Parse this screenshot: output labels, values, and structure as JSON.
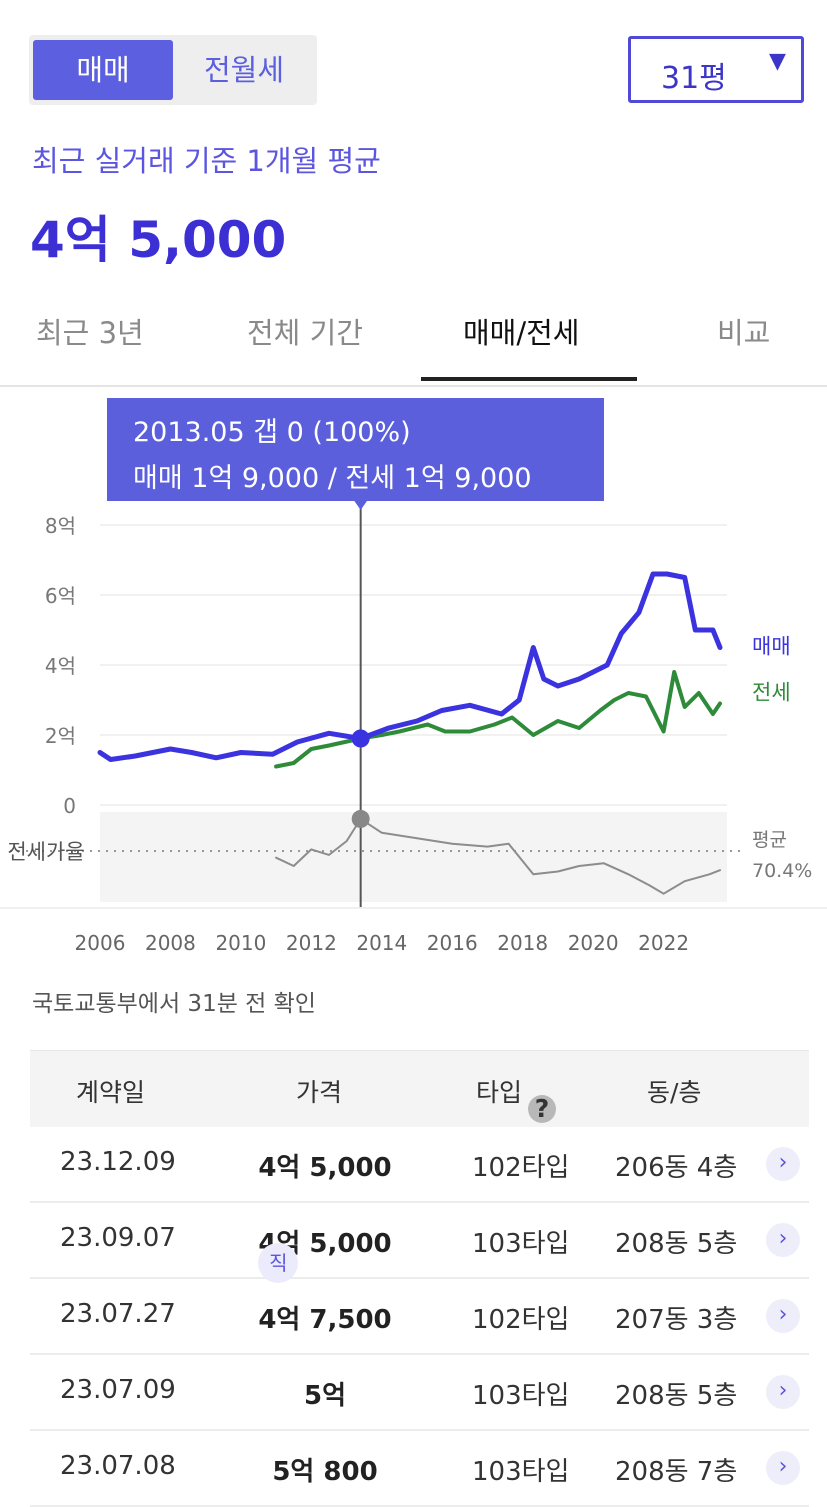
{
  "toggle": {
    "sale": "매매",
    "lease": "전월세"
  },
  "size_select": {
    "value": "31평",
    "caret": "▼"
  },
  "subtitle": "최근 실거래 기준 1개월 평균",
  "avg_price": "4억 5,000",
  "tabs": [
    "최근 3년",
    "전체 기간",
    "매매/전세",
    "비교"
  ],
  "active_tab": "매매/전세",
  "tooltip": {
    "line1": "2013.05  갭 0 (100%)",
    "line2": "매매 1억 9,000 / 전세 1억 9,000"
  },
  "colors": {
    "accent": "#5b5fe0",
    "sale_line": "#3a33df",
    "lease_line": "#2e8b3a",
    "ratio_line": "#8c8c8c"
  },
  "chart_data": {
    "type": "line",
    "y_tick_labels": [
      "8억",
      "6억",
      "4억",
      "2억",
      "0"
    ],
    "y_ticks": [
      8,
      6,
      4,
      2,
      0
    ],
    "ylim": [
      0,
      8
    ],
    "x_tick_labels": [
      "2006",
      "2008",
      "2010",
      "2012",
      "2014",
      "2016",
      "2018",
      "2020",
      "2022"
    ],
    "xlim": [
      2006,
      2023.8
    ],
    "series_labels": {
      "sale": "매매",
      "lease": "전세"
    },
    "series": [
      {
        "name": "매매",
        "unit": "억",
        "x": [
          2006.0,
          2006.3,
          2007.0,
          2008.0,
          2008.6,
          2009.3,
          2010.0,
          2010.9,
          2011.6,
          2012.5,
          2013.4,
          2014.2,
          2015.0,
          2015.7,
          2016.5,
          2017.4,
          2017.9,
          2018.3,
          2018.6,
          2019.0,
          2019.6,
          2020.4,
          2020.8,
          2021.3,
          2021.7,
          2022.1,
          2022.6,
          2022.9,
          2023.4,
          2023.6
        ],
        "values": [
          1.5,
          1.3,
          1.4,
          1.6,
          1.5,
          1.35,
          1.5,
          1.45,
          1.8,
          2.05,
          1.9,
          2.2,
          2.4,
          2.7,
          2.85,
          2.6,
          3.0,
          4.5,
          3.6,
          3.4,
          3.6,
          4.0,
          4.9,
          5.5,
          6.6,
          6.6,
          6.5,
          5.0,
          5.0,
          4.5
        ]
      },
      {
        "name": "전세",
        "unit": "억",
        "x": [
          2011.0,
          2011.5,
          2012.0,
          2012.5,
          2013.4,
          2014.0,
          2014.5,
          2015.3,
          2015.8,
          2016.5,
          2017.2,
          2017.7,
          2018.3,
          2019.0,
          2019.6,
          2020.2,
          2020.6,
          2021.0,
          2021.5,
          2022.0,
          2022.3,
          2022.6,
          2023.0,
          2023.4,
          2023.6
        ],
        "values": [
          1.1,
          1.2,
          1.6,
          1.7,
          1.9,
          2.0,
          2.1,
          2.3,
          2.1,
          2.1,
          2.3,
          2.5,
          2.0,
          2.4,
          2.2,
          2.7,
          3.0,
          3.2,
          3.1,
          2.1,
          3.8,
          2.8,
          3.2,
          2.6,
          2.9
        ]
      }
    ],
    "ratio": {
      "label": "전세가율",
      "avg_label": "평균",
      "avg_value": "70.4%",
      "x": [
        2011.0,
        2011.5,
        2012.0,
        2012.5,
        2013.0,
        2013.4,
        2014.0,
        2015.0,
        2016.0,
        2017.0,
        2017.6,
        2018.3,
        2019.0,
        2019.6,
        2020.3,
        2021.0,
        2021.6,
        2022.0,
        2022.6,
        2023.3,
        2023.6
      ],
      "values": [
        72,
        66,
        78,
        74,
        84,
        100,
        90,
        86,
        82,
        80,
        82,
        60,
        62,
        66,
        68,
        60,
        52,
        46,
        55,
        60,
        63
      ]
    },
    "highlight": {
      "x": 2013.4,
      "sale": 1.9,
      "lease": 1.9,
      "ratio_pct": 100
    }
  },
  "source_note": "국토교통부에서 31분 전 확인",
  "table": {
    "headers": {
      "date": "계약일",
      "price": "가격",
      "type": "타입",
      "help": "?",
      "dong": "동/층"
    },
    "rows": [
      {
        "date": "23.12.09",
        "badge": "",
        "price": "4억 5,000",
        "type": "102타입",
        "dong": "206동 4층"
      },
      {
        "date": "23.09.07",
        "badge": "직",
        "price": "4억 5,000",
        "type": "103타입",
        "dong": "208동 5층"
      },
      {
        "date": "23.07.27",
        "badge": "",
        "price": "4억 7,500",
        "type": "102타입",
        "dong": "207동 3층"
      },
      {
        "date": "23.07.09",
        "badge": "",
        "price": "5억",
        "type": "103타입",
        "dong": "208동 5층"
      },
      {
        "date": "23.07.08",
        "badge": "",
        "price": "5억 800",
        "type": "103타입",
        "dong": "208동 7층"
      }
    ]
  }
}
